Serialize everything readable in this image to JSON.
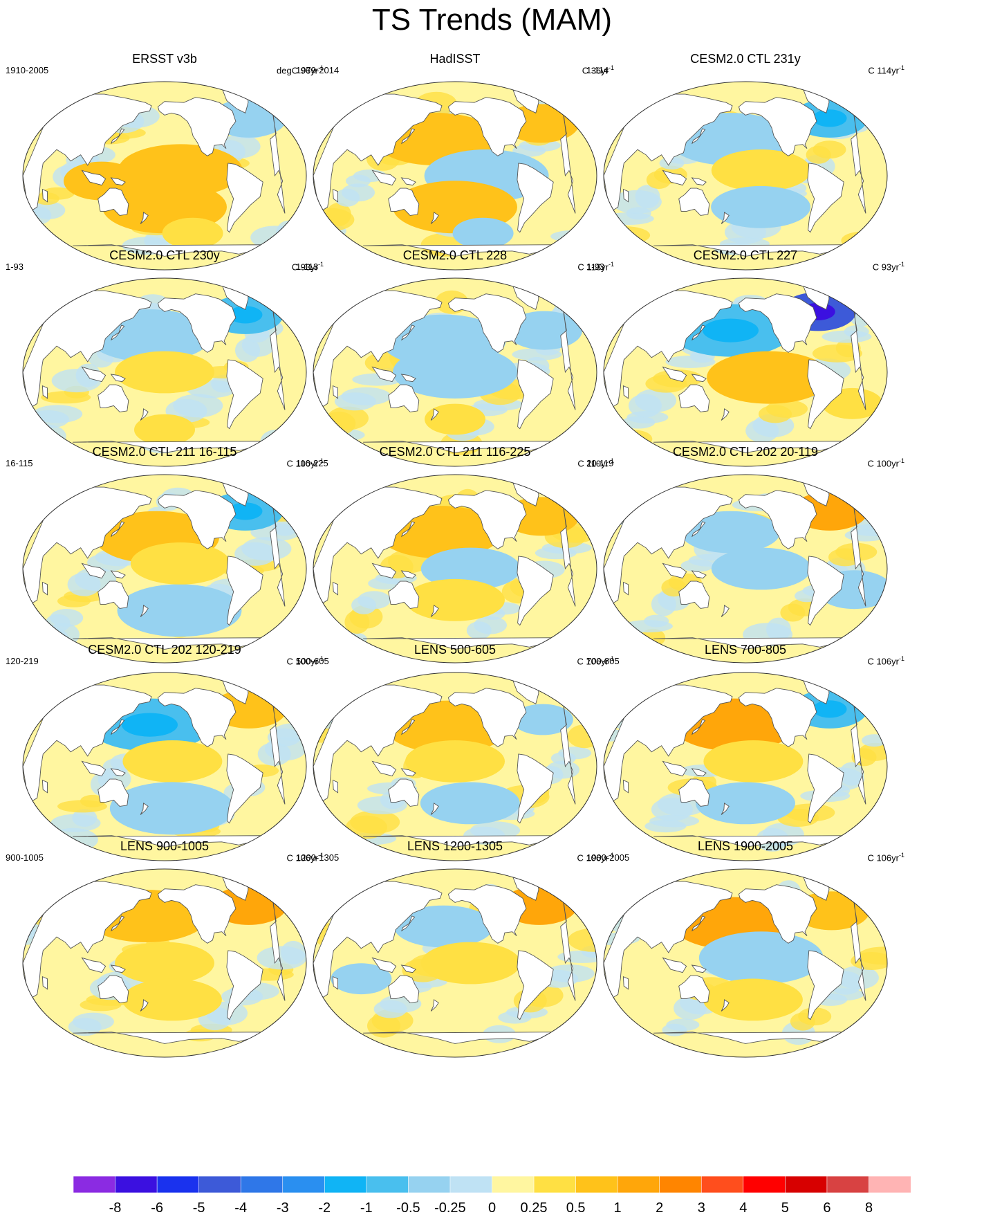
{
  "title": "TS Trends (MAM)",
  "chart_data": {
    "type": "map-panel-grid",
    "title": "TS Trends (MAM)",
    "projection": "Robinson-like global map, Pacific-centered",
    "panels": [
      {
        "title": "ERSST v3b",
        "period": "1910-2005",
        "units_prefix": "degC 96yr",
        "units_exp": "-1",
        "regions": [
          {
            "name": "warm-pool",
            "level": 0.75,
            "lon": 120,
            "lat": -5
          },
          {
            "name": "south-pacific",
            "level": 0.75,
            "lon": 200,
            "lat": -30
          },
          {
            "name": "north-atlantic",
            "level": -0.5,
            "lon": 320,
            "lat": 55
          },
          {
            "name": "tropical-pacific",
            "level": 0.75,
            "lon": 220,
            "lat": 5
          },
          {
            "name": "southern-ocean",
            "level": 0.3,
            "lon": 240,
            "lat": -55
          }
        ]
      },
      {
        "title": "HadISST",
        "period": "1979-2014",
        "units_prefix": "C 36yr",
        "units_exp": "-1",
        "regions": [
          {
            "name": "north-pacific",
            "level": 0.75,
            "lon": 175,
            "lat": 35
          },
          {
            "name": "east-pacific",
            "level": -0.5,
            "lon": 240,
            "lat": 0
          },
          {
            "name": "south-pacific",
            "level": 0.75,
            "lon": 200,
            "lat": -30
          },
          {
            "name": "north-atlantic",
            "level": 0.75,
            "lon": 320,
            "lat": 50
          },
          {
            "name": "southern-ocean",
            "level": -0.3,
            "lon": 240,
            "lat": -55
          }
        ]
      },
      {
        "title": "CESM2.0 CTL 231y",
        "period": "1-114",
        "units_prefix": "C 114yr",
        "units_exp": "-1",
        "regions": [
          {
            "name": "north-pacific",
            "level": -0.5,
            "lon": 180,
            "lat": 35
          },
          {
            "name": "tropical-pacific",
            "level": 0.3,
            "lon": 220,
            "lat": 5
          },
          {
            "name": "north-atlantic",
            "level": -1,
            "lon": 320,
            "lat": 55
          },
          {
            "name": "south-pacific",
            "level": -0.3,
            "lon": 220,
            "lat": -30
          }
        ]
      },
      {
        "title": "CESM2.0 CTL 230y",
        "period": "1-93",
        "units_prefix": "C 93yr",
        "units_exp": "-1",
        "regions": [
          {
            "name": "north-pacific",
            "level": -0.5,
            "lon": 180,
            "lat": 35
          },
          {
            "name": "tropical-pacific",
            "level": 0.3,
            "lon": 200,
            "lat": 0
          },
          {
            "name": "north-atlantic",
            "level": -1,
            "lon": 315,
            "lat": 55
          },
          {
            "name": "southern-ocean",
            "level": 0.3,
            "lon": 200,
            "lat": -55
          }
        ]
      },
      {
        "title": "CESM2.0 CTL 228",
        "period": "1-113",
        "units_prefix": "C 113yr",
        "units_exp": "-1",
        "regions": [
          {
            "name": "north-pacific",
            "level": -0.5,
            "lon": 185,
            "lat": 30
          },
          {
            "name": "tropical-pacific",
            "level": -0.5,
            "lon": 200,
            "lat": 0
          },
          {
            "name": "north-atlantic",
            "level": -0.5,
            "lon": 320,
            "lat": 40
          },
          {
            "name": "southern-ocean",
            "level": 0.3,
            "lon": 200,
            "lat": -45
          }
        ]
      },
      {
        "title": "CESM2.0 CTL 227",
        "period": "1-93",
        "units_prefix": "C 93yr",
        "units_exp": "-1",
        "regions": [
          {
            "name": "north-pacific",
            "level": -1,
            "lon": 180,
            "lat": 40
          },
          {
            "name": "east-pacific",
            "level": 0.75,
            "lon": 230,
            "lat": -5
          },
          {
            "name": "labrador-sea",
            "level": -5,
            "lon": 305,
            "lat": 58
          },
          {
            "name": "south-atlantic",
            "level": 0.3,
            "lon": 340,
            "lat": -30
          }
        ]
      },
      {
        "title": "CESM2.0 CTL 211 16-115",
        "period": "16-115",
        "units_prefix": "C 100yr",
        "units_exp": "-1",
        "regions": [
          {
            "name": "north-pacific",
            "level": 0.75,
            "lon": 190,
            "lat": 30
          },
          {
            "name": "south-pacific",
            "level": -0.5,
            "lon": 220,
            "lat": -40
          },
          {
            "name": "north-atlantic",
            "level": -1,
            "lon": 315,
            "lat": 55
          },
          {
            "name": "tropical-pacific",
            "level": 0.3,
            "lon": 220,
            "lat": 5
          }
        ]
      },
      {
        "title": "CESM2.0 CTL 211 116-225",
        "period": "116-225",
        "units_prefix": "C 110yr",
        "units_exp": "-1",
        "regions": [
          {
            "name": "north-pacific",
            "level": 0.75,
            "lon": 180,
            "lat": 35
          },
          {
            "name": "tropical-pacific",
            "level": -0.3,
            "lon": 220,
            "lat": 0
          },
          {
            "name": "north-atlantic",
            "level": 0.75,
            "lon": 320,
            "lat": 50
          },
          {
            "name": "south-pacific",
            "level": 0.3,
            "lon": 200,
            "lat": -30
          }
        ]
      },
      {
        "title": "CESM2.0 CTL 202 20-119",
        "period": "20-119",
        "units_prefix": "C 100yr",
        "units_exp": "-1",
        "regions": [
          {
            "name": "north-pacific",
            "level": -0.3,
            "lon": 180,
            "lat": 35
          },
          {
            "name": "tropical-pacific",
            "level": -0.3,
            "lon": 220,
            "lat": 0
          },
          {
            "name": "north-atlantic",
            "level": 1,
            "lon": 320,
            "lat": 55
          },
          {
            "name": "south-atlantic",
            "level": -0.5,
            "lon": 340,
            "lat": -20
          }
        ]
      },
      {
        "title": "CESM2.0 CTL 202 120-219",
        "period": "120-219",
        "units_prefix": "C 100yr",
        "units_exp": "-1",
        "regions": [
          {
            "name": "north-pacific",
            "level": -1,
            "lon": 180,
            "lat": 40
          },
          {
            "name": "tropical-pacific",
            "level": 0.3,
            "lon": 210,
            "lat": 5
          },
          {
            "name": "north-atlantic",
            "level": 0.75,
            "lon": 320,
            "lat": 55
          },
          {
            "name": "south-pacific",
            "level": -0.5,
            "lon": 210,
            "lat": -40
          }
        ]
      },
      {
        "title": "LENS 500-605",
        "period": "500-605",
        "units_prefix": "C 106yr",
        "units_exp": "-1",
        "regions": [
          {
            "name": "north-pacific",
            "level": 0.75,
            "lon": 190,
            "lat": 38
          },
          {
            "name": "tropical-pacific",
            "level": 0.3,
            "lon": 200,
            "lat": 5
          },
          {
            "name": "north-atlantic",
            "level": -0.3,
            "lon": 320,
            "lat": 45
          },
          {
            "name": "south-pacific",
            "level": -0.3,
            "lon": 220,
            "lat": -35
          }
        ]
      },
      {
        "title": "LENS 700-805",
        "period": "700-805",
        "units_prefix": "C 106yr",
        "units_exp": "-1",
        "regions": [
          {
            "name": "north-pacific",
            "level": 1,
            "lon": 185,
            "lat": 40
          },
          {
            "name": "tropical-pacific",
            "level": 0.3,
            "lon": 210,
            "lat": 5
          },
          {
            "name": "north-atlantic",
            "level": -1,
            "lon": 320,
            "lat": 55
          },
          {
            "name": "south-pacific",
            "level": -0.3,
            "lon": 200,
            "lat": -35
          }
        ]
      },
      {
        "title": "LENS 900-1005",
        "period": "900-1005",
        "units_prefix": "C 106yr",
        "units_exp": "-1",
        "regions": [
          {
            "name": "north-pacific",
            "level": 0.75,
            "lon": 175,
            "lat": 45
          },
          {
            "name": "tropical-pacific",
            "level": 0.3,
            "lon": 200,
            "lat": 0
          },
          {
            "name": "north-atlantic",
            "level": 1,
            "lon": 320,
            "lat": 55
          },
          {
            "name": "south-pacific",
            "level": 0.3,
            "lon": 210,
            "lat": -35
          }
        ]
      },
      {
        "title": "LENS 1200-1305",
        "period": "1200-1305",
        "units_prefix": "C 106yr",
        "units_exp": "-1",
        "regions": [
          {
            "name": "north-pacific",
            "level": -0.3,
            "lon": 185,
            "lat": 35
          },
          {
            "name": "tropical-pacific",
            "level": 0.3,
            "lon": 220,
            "lat": 0
          },
          {
            "name": "north-atlantic",
            "level": 1,
            "lon": 320,
            "lat": 55
          },
          {
            "name": "indian-ocean",
            "level": -0.3,
            "lon": 80,
            "lat": -15
          }
        ]
      },
      {
        "title": "LENS 1900-2005",
        "period": "1900-2005",
        "units_prefix": "C 106yr",
        "units_exp": "-1",
        "regions": [
          {
            "name": "north-pacific",
            "level": 1,
            "lon": 185,
            "lat": 38
          },
          {
            "name": "tropical-pacific",
            "level": -0.5,
            "lon": 220,
            "lat": 5
          },
          {
            "name": "north-atlantic",
            "level": 0.75,
            "lon": 320,
            "lat": 50
          },
          {
            "name": "south-pacific",
            "level": 0.3,
            "lon": 210,
            "lat": -35
          }
        ]
      }
    ],
    "colorbar": {
      "labels": [
        "-8",
        "-6",
        "-5",
        "-4",
        "-3",
        "-2",
        "-1",
        "-0.5",
        "-0.25",
        "0",
        "0.25",
        "0.5",
        "1",
        "2",
        "3",
        "4",
        "5",
        "6",
        "8"
      ],
      "colors": [
        "#8b2be2",
        "#3b10e0",
        "#1a32ee",
        "#3d5ad8",
        "#2f77e8",
        "#2a8ff0",
        "#10b4f5",
        "#49bfee",
        "#96d2f0",
        "#bfe2f4",
        "#fff6a0",
        "#ffe043",
        "#ffc21a",
        "#ffa60a",
        "#ff8500",
        "#ff4e1d",
        "#ff0000",
        "#d70000",
        "#d84242",
        "#ffb4b4"
      ]
    }
  }
}
